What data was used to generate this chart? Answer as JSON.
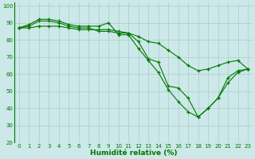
{
  "xlabel": "Humidité relative (%)",
  "background_color": "#cce8e8",
  "grid_color": "#aacccc",
  "line_color": "#007700",
  "xlim": [
    -0.5,
    23.5
  ],
  "ylim": [
    20,
    102
  ],
  "yticks": [
    20,
    30,
    40,
    50,
    60,
    70,
    80,
    90,
    100
  ],
  "xticks": [
    0,
    1,
    2,
    3,
    4,
    5,
    6,
    7,
    8,
    9,
    10,
    11,
    12,
    13,
    14,
    15,
    16,
    17,
    18,
    19,
    20,
    21,
    22,
    23
  ],
  "line1": [
    87,
    89,
    92,
    92,
    91,
    89,
    88,
    88,
    88,
    90,
    83,
    83,
    75,
    68,
    61,
    51,
    44,
    38,
    35,
    40,
    46,
    58,
    62,
    63
  ],
  "line2": [
    87,
    88,
    91,
    91,
    90,
    88,
    87,
    87,
    85,
    85,
    84,
    84,
    79,
    69,
    67,
    53,
    52,
    46,
    35,
    40,
    46,
    55,
    61,
    63
  ],
  "line3": [
    87,
    87,
    88,
    88,
    88,
    87,
    86,
    86,
    86,
    86,
    85,
    84,
    82,
    79,
    78,
    74,
    70,
    65,
    62,
    63,
    65,
    67,
    68,
    63
  ],
  "figsize": [
    3.2,
    2.0
  ],
  "dpi": 100,
  "xlabel_fontsize": 6.5,
  "tick_fontsize": 5
}
